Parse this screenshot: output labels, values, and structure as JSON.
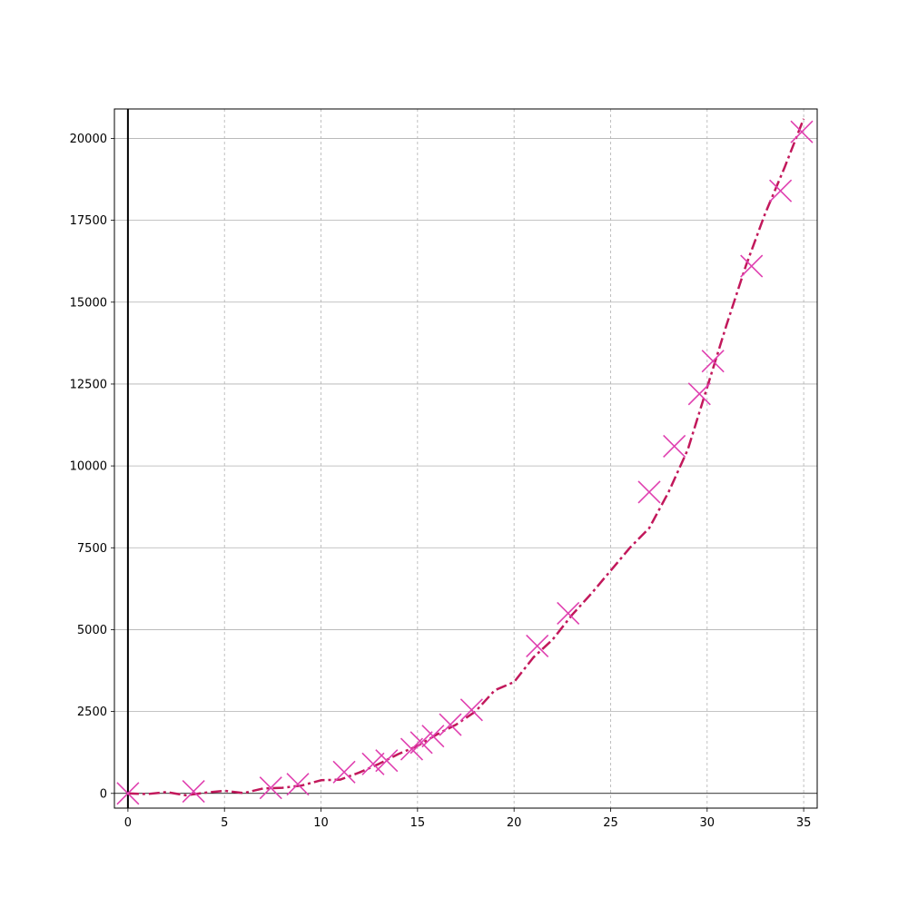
{
  "chart_data": {
    "type": "line",
    "title": "",
    "xlabel": "",
    "ylabel": "",
    "xlim": [
      -0.7,
      35.7
    ],
    "ylim": [
      -450,
      20900
    ],
    "xticks": [
      0,
      5,
      10,
      15,
      20,
      25,
      30,
      35
    ],
    "yticks": [
      0,
      2500,
      5000,
      7500,
      10000,
      12500,
      15000,
      17500,
      20000
    ],
    "grid": {
      "x": "dashed",
      "y": "solid"
    },
    "reference_lines": {
      "vertical_at_x": 0,
      "horizontal_at_y": 0
    },
    "series": [
      {
        "style": "dash-dot line",
        "color": "#c2185b",
        "x": [
          0,
          1,
          2,
          3,
          4,
          5,
          6,
          7,
          8,
          9,
          10,
          11,
          12,
          13,
          14,
          15,
          16,
          17,
          18,
          19,
          20,
          21,
          22,
          23,
          24,
          25,
          26,
          27,
          28,
          29,
          30,
          31,
          32,
          33,
          34,
          35
        ],
        "values": [
          0,
          -20,
          40,
          -60,
          20,
          80,
          10,
          150,
          170,
          240,
          400,
          420,
          640,
          900,
          1200,
          1450,
          1800,
          2100,
          2500,
          3150,
          3400,
          4150,
          4700,
          5450,
          6100,
          6800,
          7500,
          8100,
          9200,
          10500,
          12400,
          14300,
          16100,
          17700,
          19100,
          20600
        ]
      },
      {
        "style": "x markers",
        "color": "#e040b0",
        "x": [
          0,
          3.4,
          7.4,
          8.8,
          11.2,
          12.7,
          13.4,
          14.7,
          15.2,
          15.8,
          16.7,
          17.8,
          21.2,
          22.8,
          27.0,
          28.3,
          29.6,
          30.3,
          32.3,
          33.8,
          34.9
        ],
        "values": [
          0,
          60,
          170,
          280,
          650,
          900,
          1000,
          1350,
          1550,
          1750,
          2100,
          2550,
          4500,
          5500,
          9200,
          10600,
          12200,
          13200,
          16100,
          18400,
          20200
        ]
      }
    ]
  }
}
